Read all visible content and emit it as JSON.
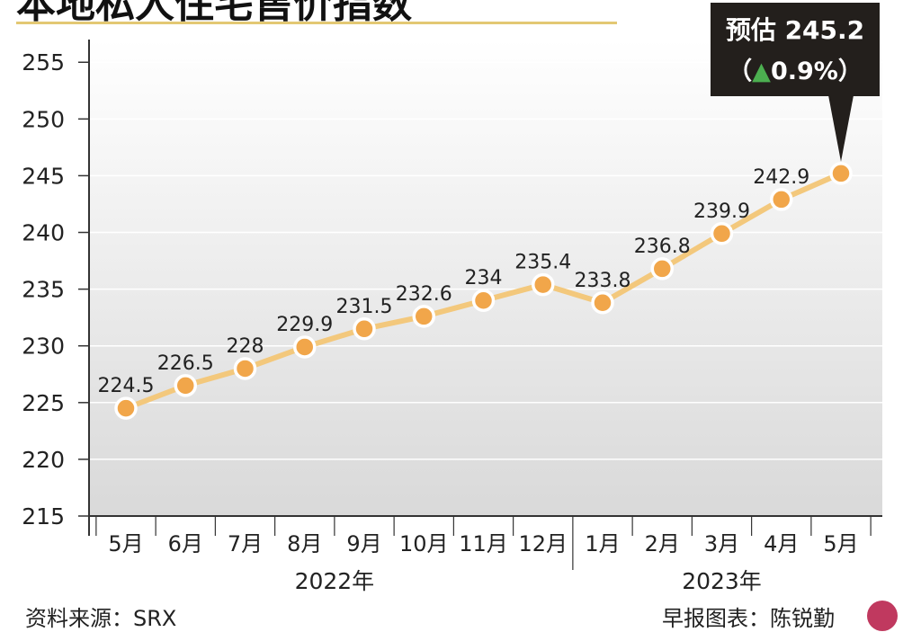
{
  "header": {
    "title": "本地私人住宅售价指数"
  },
  "footer": {
    "source": "资料来源：SRX",
    "credit": "早报图表：陈锐勤"
  },
  "chart_data": {
    "type": "line",
    "title": "本地私人住宅售价指数",
    "categories": [
      "5月",
      "6月",
      "7月",
      "8月",
      "9月",
      "10月",
      "11月",
      "12月",
      "1月",
      "2月",
      "3月",
      "4月",
      "5月"
    ],
    "year_groups": [
      {
        "label": "2022年",
        "from": 0,
        "to": 7
      },
      {
        "label": "2023年",
        "from": 8,
        "to": 12
      }
    ],
    "series": [
      {
        "values": [
          224.5,
          226.5,
          228,
          229.9,
          231.5,
          232.6,
          234,
          235.4,
          233.8,
          236.8,
          239.9,
          242.9,
          245.2
        ]
      }
    ],
    "data_labels": [
      "224.5",
      "226.5",
      "228",
      "229.9",
      "231.5",
      "232.6",
      "234",
      "235.4",
      "233.8",
      "236.8",
      "239.9",
      "242.9",
      ""
    ],
    "ylim": [
      215,
      257
    ],
    "yticks": [
      215,
      220,
      225,
      230,
      235,
      240,
      245,
      250,
      255
    ],
    "grid": true,
    "callout": {
      "line1": "预估 245.2",
      "line2_prefix": "（",
      "arrow": "▲",
      "line2_value": "0.9%",
      "line2_suffix": "）"
    },
    "colors": {
      "line": "#f3c87c",
      "marker": "#f1a64a",
      "marker_edge": "#ffffff",
      "callout_bg": "#231f1c",
      "arrow": "#4caf50"
    }
  }
}
